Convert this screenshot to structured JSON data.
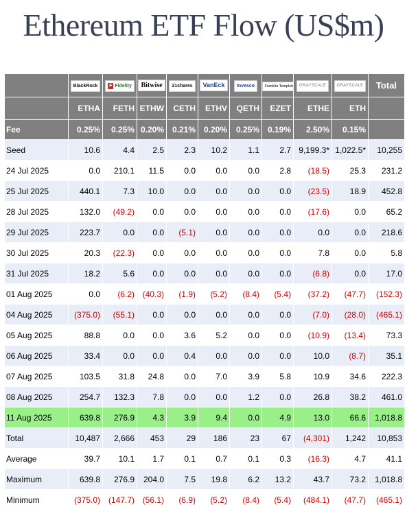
{
  "title": "Ethereum ETF Flow (US$m)",
  "colors": {
    "header_bg": "#808080",
    "alt_row": "#e9edf7",
    "highlight_row": "#99f088",
    "negative": "#d40000",
    "title": "#3b3f55"
  },
  "issuers": [
    "BlackRock",
    "Fidelity",
    "Bitwise",
    "21shares",
    "VanEck",
    "Invesco",
    "Franklin Templeton",
    "GRAYSCALE",
    "GRAYSCALE"
  ],
  "total_header": "Total",
  "fee_label": "Fee",
  "chart_data": {
    "type": "table",
    "title": "Ethereum ETF Flow (US$m)",
    "columns": [
      "ETHA",
      "FETH",
      "ETHW",
      "CETH",
      "ETHV",
      "QETH",
      "EZET",
      "ETHE",
      "ETH",
      "Total"
    ],
    "fees": [
      "0.25%",
      "0.25%",
      "0.20%",
      "0.21%",
      "0.20%",
      "0.25%",
      "0.19%",
      "2.50%",
      "0.15%",
      ""
    ],
    "rows": [
      {
        "label": "Seed",
        "values": [
          "10.6",
          "4.4",
          "2.5",
          "2.3",
          "10.2",
          "1.1",
          "2.7",
          "9,199.3*",
          "1,022.5*",
          "10,255"
        ]
      },
      {
        "label": "24 Jul 2025",
        "values": [
          "0.0",
          "210.1",
          "11.5",
          "0.0",
          "0.0",
          "0.0",
          "2.8",
          "(18.5)",
          "25.3",
          "231.2"
        ]
      },
      {
        "label": "25 Jul 2025",
        "values": [
          "440.1",
          "7.3",
          "10.0",
          "0.0",
          "0.0",
          "0.0",
          "0.0",
          "(23.5)",
          "18.9",
          "452.8"
        ]
      },
      {
        "label": "28 Jul 2025",
        "values": [
          "132.0",
          "(49.2)",
          "0.0",
          "0.0",
          "0.0",
          "0.0",
          "0.0",
          "(17.6)",
          "0.0",
          "65.2"
        ]
      },
      {
        "label": "29 Jul 2025",
        "values": [
          "223.7",
          "0.0",
          "0.0",
          "(5.1)",
          "0.0",
          "0.0",
          "0.0",
          "0.0",
          "0.0",
          "218.6"
        ]
      },
      {
        "label": "30 Jul 2025",
        "values": [
          "20.3",
          "(22.3)",
          "0.0",
          "0.0",
          "0.0",
          "0.0",
          "0.0",
          "7.8",
          "0.0",
          "5.8"
        ]
      },
      {
        "label": "31 Jul 2025",
        "values": [
          "18.2",
          "5.6",
          "0.0",
          "0.0",
          "0.0",
          "0.0",
          "0.0",
          "(6.8)",
          "0.0",
          "17.0"
        ]
      },
      {
        "label": "01 Aug 2025",
        "values": [
          "0.0",
          "(6.2)",
          "(40.3)",
          "(1.9)",
          "(5.2)",
          "(8.4)",
          "(5.4)",
          "(37.2)",
          "(47.7)",
          "(152.3)"
        ]
      },
      {
        "label": "04 Aug 2025",
        "values": [
          "(375.0)",
          "(55.1)",
          "0.0",
          "0.0",
          "0.0",
          "0.0",
          "0.0",
          "(7.0)",
          "(28.0)",
          "(465.1)"
        ]
      },
      {
        "label": "05 Aug 2025",
        "values": [
          "88.8",
          "0.0",
          "0.0",
          "3.6",
          "5.2",
          "0.0",
          "0.0",
          "(10.9)",
          "(13.4)",
          "73.3"
        ]
      },
      {
        "label": "06 Aug 2025",
        "values": [
          "33.4",
          "0.0",
          "0.0",
          "0.4",
          "0.0",
          "0.0",
          "0.0",
          "10.0",
          "(8.7)",
          "35.1"
        ]
      },
      {
        "label": "07 Aug 2025",
        "values": [
          "103.5",
          "31.8",
          "24.8",
          "0.0",
          "7.0",
          "3.9",
          "5.8",
          "10.9",
          "34.6",
          "222.3"
        ]
      },
      {
        "label": "08 Aug 2025",
        "values": [
          "254.7",
          "132.3",
          "7.8",
          "0.0",
          "0.0",
          "1.2",
          "0.0",
          "26.8",
          "38.2",
          "461.0"
        ]
      },
      {
        "label": "11 Aug 2025",
        "values": [
          "639.8",
          "276.9",
          "4.3",
          "3.9",
          "9.4",
          "0.0",
          "4.9",
          "13.0",
          "66.6",
          "1,018.8"
        ],
        "highlight": true
      },
      {
        "label": "Total",
        "values": [
          "10,487",
          "2,666",
          "453",
          "29",
          "186",
          "23",
          "67",
          "(4,301)",
          "1,242",
          "10,853"
        ]
      },
      {
        "label": "Average",
        "values": [
          "39.7",
          "10.1",
          "1.7",
          "0.1",
          "0.7",
          "0.1",
          "0.3",
          "(16.3)",
          "4.7",
          "41.1"
        ]
      },
      {
        "label": "Maximum",
        "values": [
          "639.8",
          "276.9",
          "204.0",
          "7.5",
          "19.8",
          "6.2",
          "13.2",
          "43.7",
          "73.2",
          "1,018.8"
        ]
      },
      {
        "label": "Minimum",
        "values": [
          "(375.0)",
          "(147.7)",
          "(56.1)",
          "(6.9)",
          "(5.2)",
          "(8.4)",
          "(5.4)",
          "(484.1)",
          "(47.7)",
          "(465.1)"
        ]
      }
    ]
  }
}
